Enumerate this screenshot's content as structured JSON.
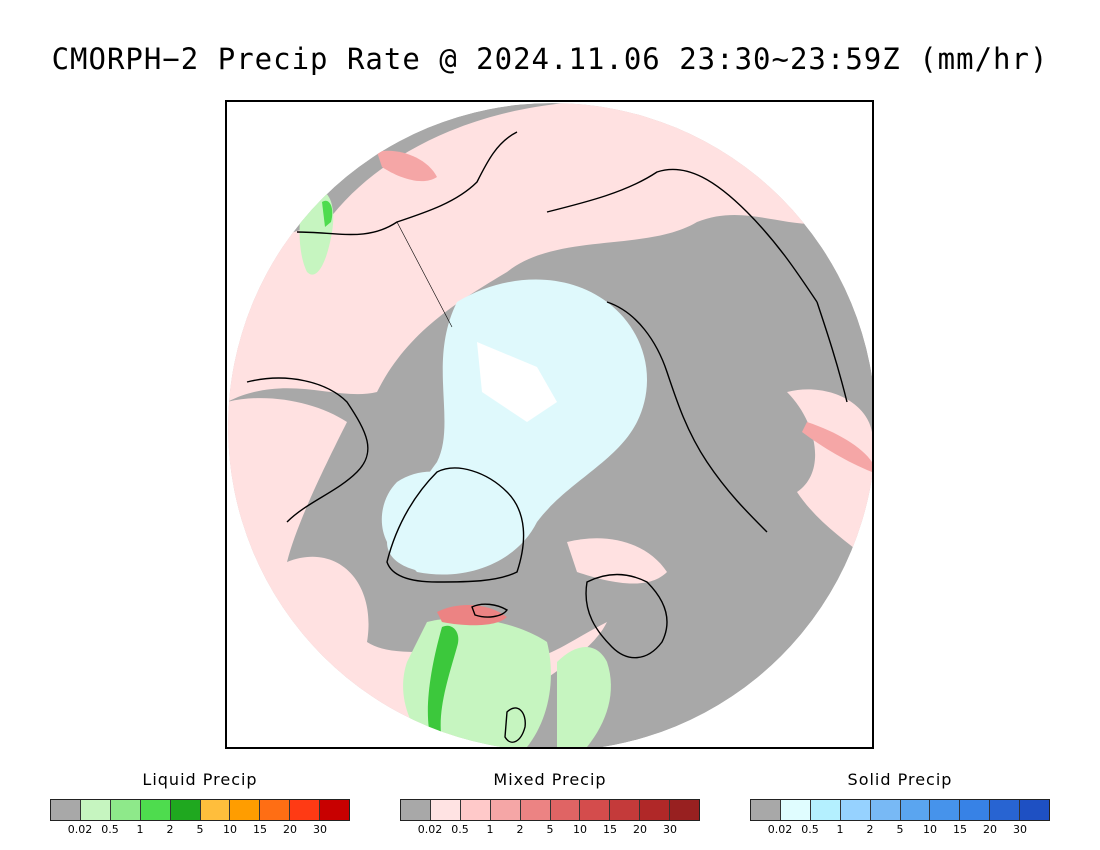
{
  "title": "CMORPH−2 Precip Rate @ 2024.11.06 23:30~23:59Z (mm/hr)",
  "colors": {
    "no_precip": "#a8a8a8",
    "land_outline": "#000000"
  },
  "legends": [
    {
      "title": "Liquid Precip",
      "colors": [
        "#a8a8a8",
        "#c6f5c0",
        "#8ee98a",
        "#4edc4e",
        "#1fa81f",
        "#ffbe3c",
        "#ff9d00",
        "#ff6e14",
        "#ff3a14",
        "#c80000"
      ],
      "ticks": [
        "0.02",
        "0.5",
        "1",
        "2",
        "5",
        "10",
        "15",
        "20",
        "30"
      ]
    },
    {
      "title": "Mixed Precip",
      "colors": [
        "#a8a8a8",
        "#ffe3e3",
        "#ffc9c9",
        "#f5a6a6",
        "#ec8383",
        "#e06464",
        "#d44c4c",
        "#c43a3a",
        "#b02828",
        "#982020"
      ],
      "ticks": [
        "0.02",
        "0.5",
        "1",
        "2",
        "5",
        "10",
        "15",
        "20",
        "30"
      ]
    },
    {
      "title": "Solid Precip",
      "colors": [
        "#a8a8a8",
        "#e0fdff",
        "#b4f0ff",
        "#96d2ff",
        "#78b9f5",
        "#5aa5f0",
        "#4693eb",
        "#3782e6",
        "#2864d2",
        "#1e50c3"
      ],
      "ticks": [
        "0.02",
        "0.5",
        "1",
        "2",
        "5",
        "10",
        "15",
        "20",
        "30"
      ]
    }
  ]
}
